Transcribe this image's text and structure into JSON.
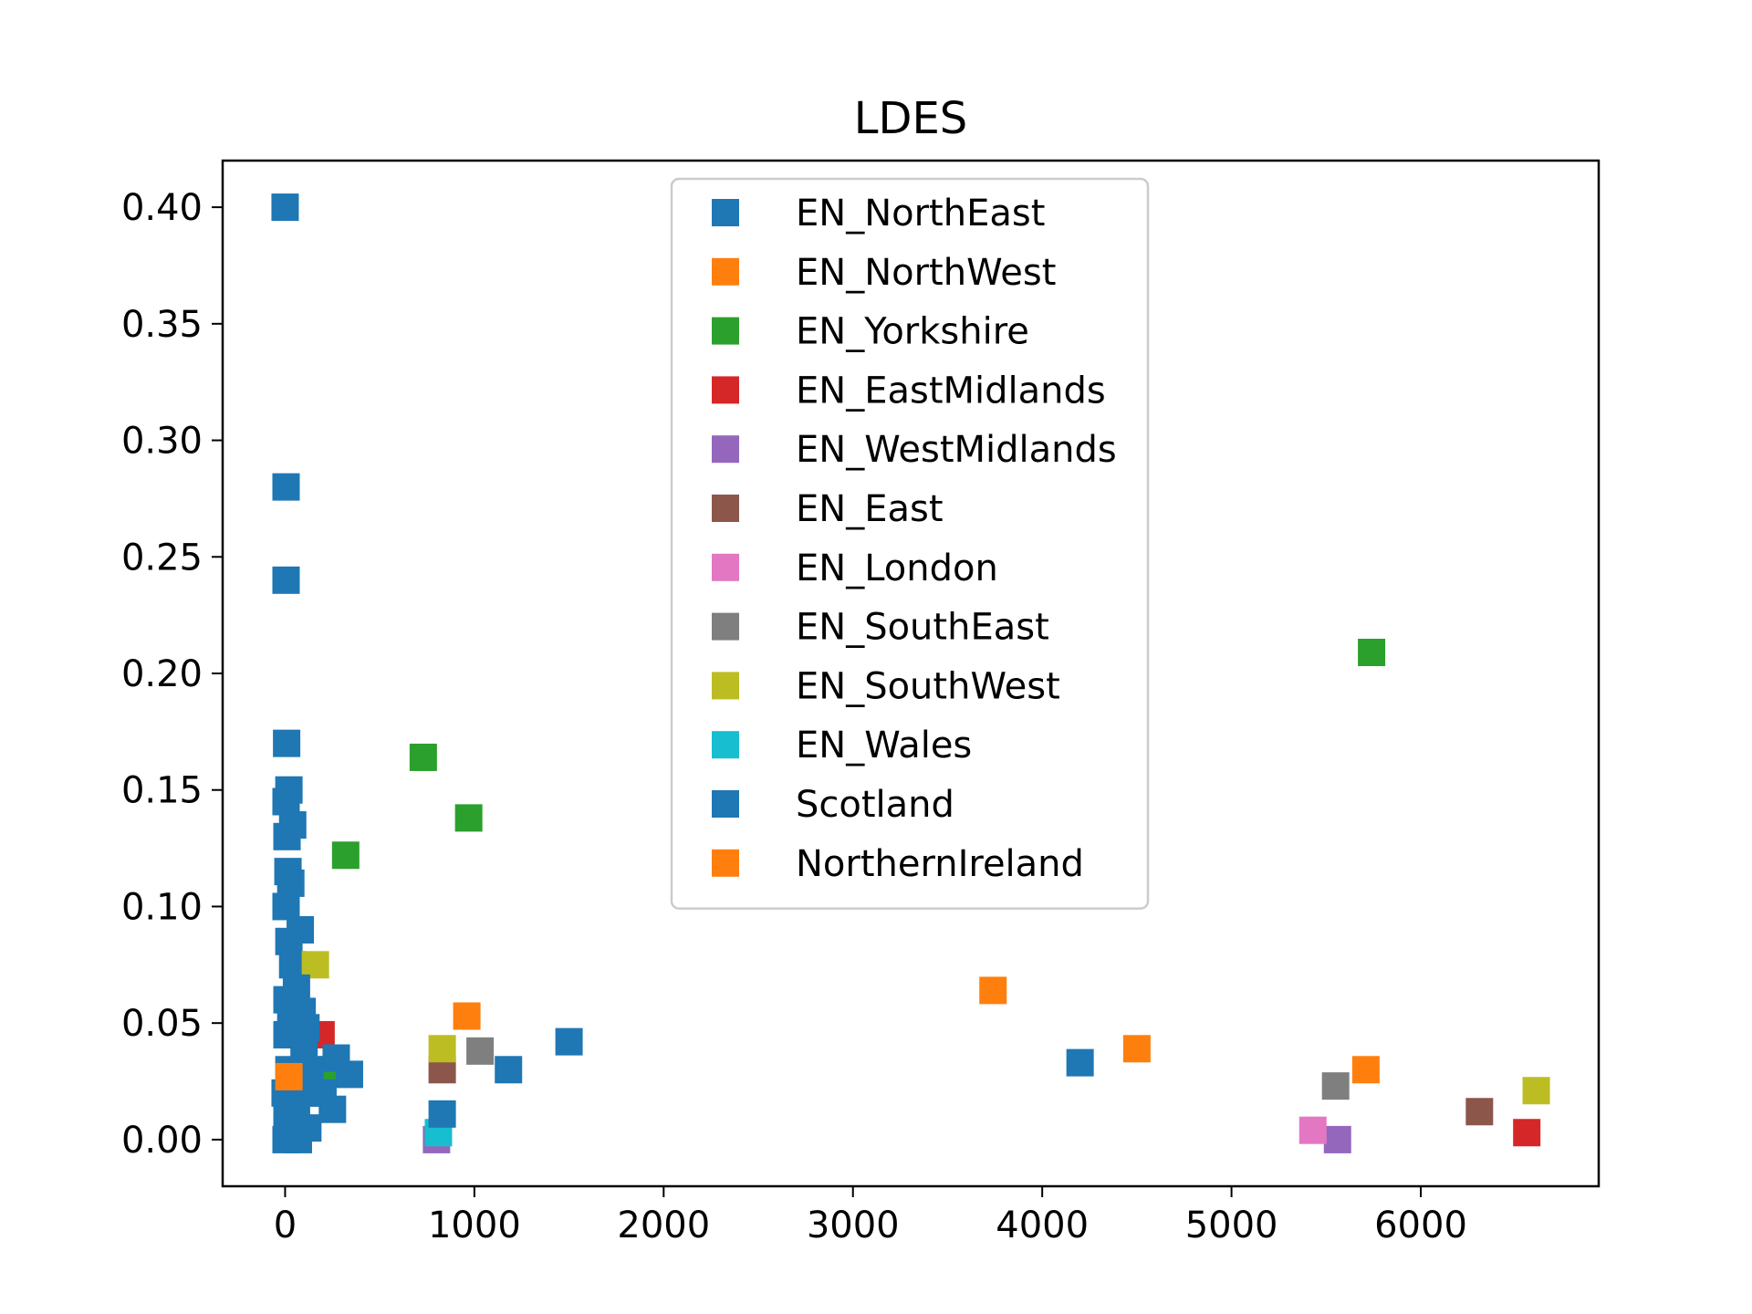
{
  "chart_data": {
    "type": "scatter",
    "title": "LDES",
    "xlabel": "",
    "ylabel": "",
    "xlim": [
      -330,
      6940
    ],
    "ylim": [
      -0.02,
      0.42
    ],
    "xticks": [
      0,
      1000,
      2000,
      3000,
      4000,
      5000,
      6000
    ],
    "xtick_labels": [
      "0",
      "1000",
      "2000",
      "3000",
      "4000",
      "5000",
      "6000"
    ],
    "yticks": [
      0.0,
      0.05,
      0.1,
      0.15,
      0.2,
      0.25,
      0.3,
      0.35,
      0.4
    ],
    "ytick_labels": [
      "0.00",
      "0.05",
      "0.10",
      "0.15",
      "0.20",
      "0.25",
      "0.30",
      "0.35",
      "0.40"
    ],
    "grid": false,
    "legend_position": "top-center",
    "marker": "square",
    "series": [
      {
        "name": "EN_NorthEast",
        "color": "#1f77b4",
        "points": [
          [
            0,
            0.4
          ],
          [
            5,
            0.28
          ],
          [
            5,
            0.24
          ],
          [
            8,
            0.17
          ],
          [
            5,
            0.145
          ],
          [
            10,
            0.13
          ],
          [
            15,
            0.115
          ],
          [
            5,
            0.1
          ],
          [
            20,
            0.085
          ],
          [
            40,
            0.075
          ],
          [
            10,
            0.06
          ],
          [
            30,
            0.05
          ],
          [
            60,
            0.045
          ],
          [
            20,
            0.03
          ],
          [
            50,
            0.02
          ],
          [
            10,
            0.01
          ],
          [
            30,
            0.005
          ],
          [
            5,
            0.0
          ]
        ]
      },
      {
        "name": "EN_NorthWest",
        "color": "#ff7f0e",
        "points": [
          [
            960,
            0.053
          ],
          [
            3740,
            0.064
          ],
          [
            4500,
            0.039
          ],
          [
            5710,
            0.03
          ]
        ]
      },
      {
        "name": "EN_Yorkshire",
        "color": "#2ca02c",
        "points": [
          [
            730,
            0.164
          ],
          [
            970,
            0.138
          ],
          [
            320,
            0.122
          ],
          [
            5740,
            0.209
          ],
          [
            250,
            0.03
          ]
        ]
      },
      {
        "name": "EN_EastMidlands",
        "color": "#d62728",
        "points": [
          [
            6560,
            0.003
          ],
          [
            190,
            0.045
          ]
        ]
      },
      {
        "name": "EN_WestMidlands",
        "color": "#9467bd",
        "points": [
          [
            800,
            0.0
          ],
          [
            5560,
            0.0
          ]
        ]
      },
      {
        "name": "EN_East",
        "color": "#8c564b",
        "points": [
          [
            830,
            0.03
          ],
          [
            6310,
            0.012
          ]
        ]
      },
      {
        "name": "EN_London",
        "color": "#e377c2",
        "points": [
          [
            5430,
            0.004
          ]
        ]
      },
      {
        "name": "EN_SouthEast",
        "color": "#7f7f7f",
        "points": [
          [
            1030,
            0.038
          ],
          [
            5550,
            0.023
          ]
        ]
      },
      {
        "name": "EN_SouthWest",
        "color": "#bcbd22",
        "points": [
          [
            160,
            0.075
          ],
          [
            830,
            0.039
          ],
          [
            6610,
            0.021
          ]
        ]
      },
      {
        "name": "EN_Wales",
        "color": "#17becf",
        "points": [
          [
            810,
            0.003
          ]
        ]
      },
      {
        "name": "Scotland",
        "color": "#1f77b4",
        "points": [
          [
            1500,
            0.042
          ],
          [
            1180,
            0.03
          ],
          [
            4200,
            0.033
          ],
          [
            830,
            0.011
          ],
          [
            340,
            0.028
          ],
          [
            270,
            0.035
          ],
          [
            250,
            0.013
          ],
          [
            120,
            0.005
          ],
          [
            80,
            0.09
          ],
          [
            60,
            0.065
          ],
          [
            100,
            0.04
          ],
          [
            150,
            0.02
          ],
          [
            30,
            0.11
          ],
          [
            20,
            0.15
          ],
          [
            40,
            0.135
          ],
          [
            0,
            0.02
          ],
          [
            60,
            0.01
          ],
          [
            90,
            0.055
          ],
          [
            130,
            0.03
          ],
          [
            200,
            0.02
          ],
          [
            10,
            0.045
          ],
          [
            70,
            0.0
          ],
          [
            40,
            0.025
          ],
          [
            110,
            0.048
          ]
        ]
      },
      {
        "name": "NorthernIreland",
        "color": "#ff7f0e",
        "points": [
          [
            20,
            0.027
          ]
        ]
      }
    ]
  }
}
